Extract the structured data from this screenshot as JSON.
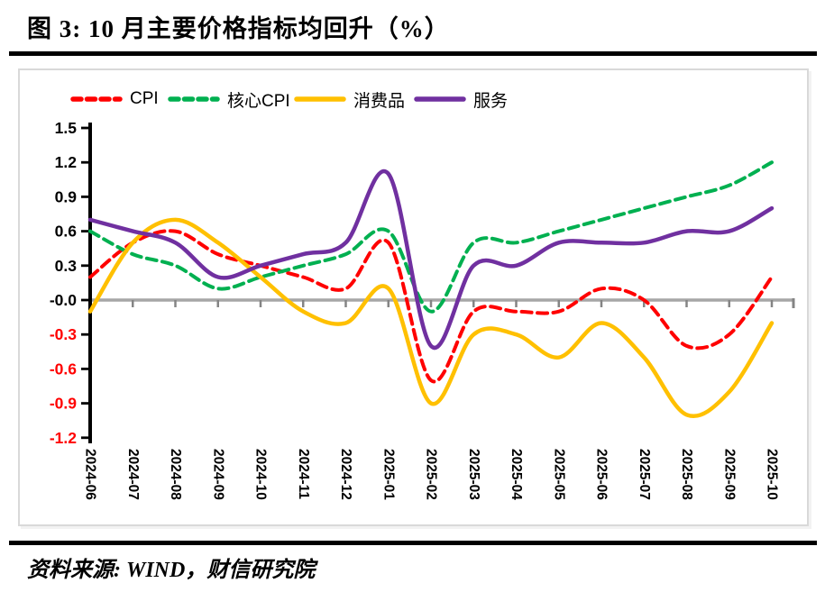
{
  "title": "图 3:  10 月主要价格指标均回升（%）",
  "source_note": "资料来源: WIND，财信研究院",
  "chart_data": {
    "type": "line",
    "x": [
      "2024-06",
      "2024-07",
      "2024-08",
      "2024-09",
      "2024-10",
      "2024-11",
      "2024-12",
      "2025-01",
      "2025-02",
      "2025-03",
      "2025-04",
      "2025-05",
      "2025-06",
      "2025-07",
      "2025-08",
      "2025-09",
      "2025-10"
    ],
    "series": [
      {
        "name": "CPI",
        "color": "#FF0000",
        "style": "dashed",
        "values": [
          0.2,
          0.5,
          0.6,
          0.4,
          0.3,
          0.2,
          0.1,
          0.5,
          -0.7,
          -0.1,
          -0.1,
          -0.1,
          0.1,
          0.0,
          -0.4,
          -0.3,
          0.2
        ]
      },
      {
        "name": "核心CPI",
        "color": "#00B050",
        "style": "dashed",
        "values": [
          0.6,
          0.4,
          0.3,
          0.1,
          0.2,
          0.3,
          0.4,
          0.6,
          -0.1,
          0.5,
          0.5,
          0.6,
          0.7,
          0.8,
          0.9,
          1.0,
          1.2
        ]
      },
      {
        "name": "消费品",
        "color": "#FFC000",
        "style": "solid",
        "values": [
          -0.1,
          0.5,
          0.7,
          0.5,
          0.2,
          -0.1,
          -0.2,
          0.1,
          -0.9,
          -0.3,
          -0.3,
          -0.5,
          -0.2,
          -0.5,
          -1.0,
          -0.8,
          -0.2
        ]
      },
      {
        "name": "服务",
        "color": "#7030A0",
        "style": "solid",
        "values": [
          0.7,
          0.6,
          0.5,
          0.2,
          0.3,
          0.4,
          0.5,
          1.1,
          -0.4,
          0.3,
          0.3,
          0.5,
          0.5,
          0.5,
          0.6,
          0.6,
          0.8
        ]
      }
    ],
    "ylim": [
      -1.2,
      1.5
    ],
    "ytick_step": 0.3,
    "ytick_labels": [
      "1.5",
      "1.2",
      "0.9",
      "0.6",
      "0.3",
      "0.0",
      "-0.3",
      "-0.6",
      "-0.9",
      "-1.2"
    ],
    "legend_position": "top",
    "grid": "zero-line-only",
    "colors": {
      "positive_tick_label": "#000000",
      "negative_tick_label": "#FF0000",
      "zero_line": "#A6A6A6",
      "zero_line_ticks": "#848484",
      "y_axis": "#000000",
      "card_border": "#D9D9D9"
    }
  }
}
